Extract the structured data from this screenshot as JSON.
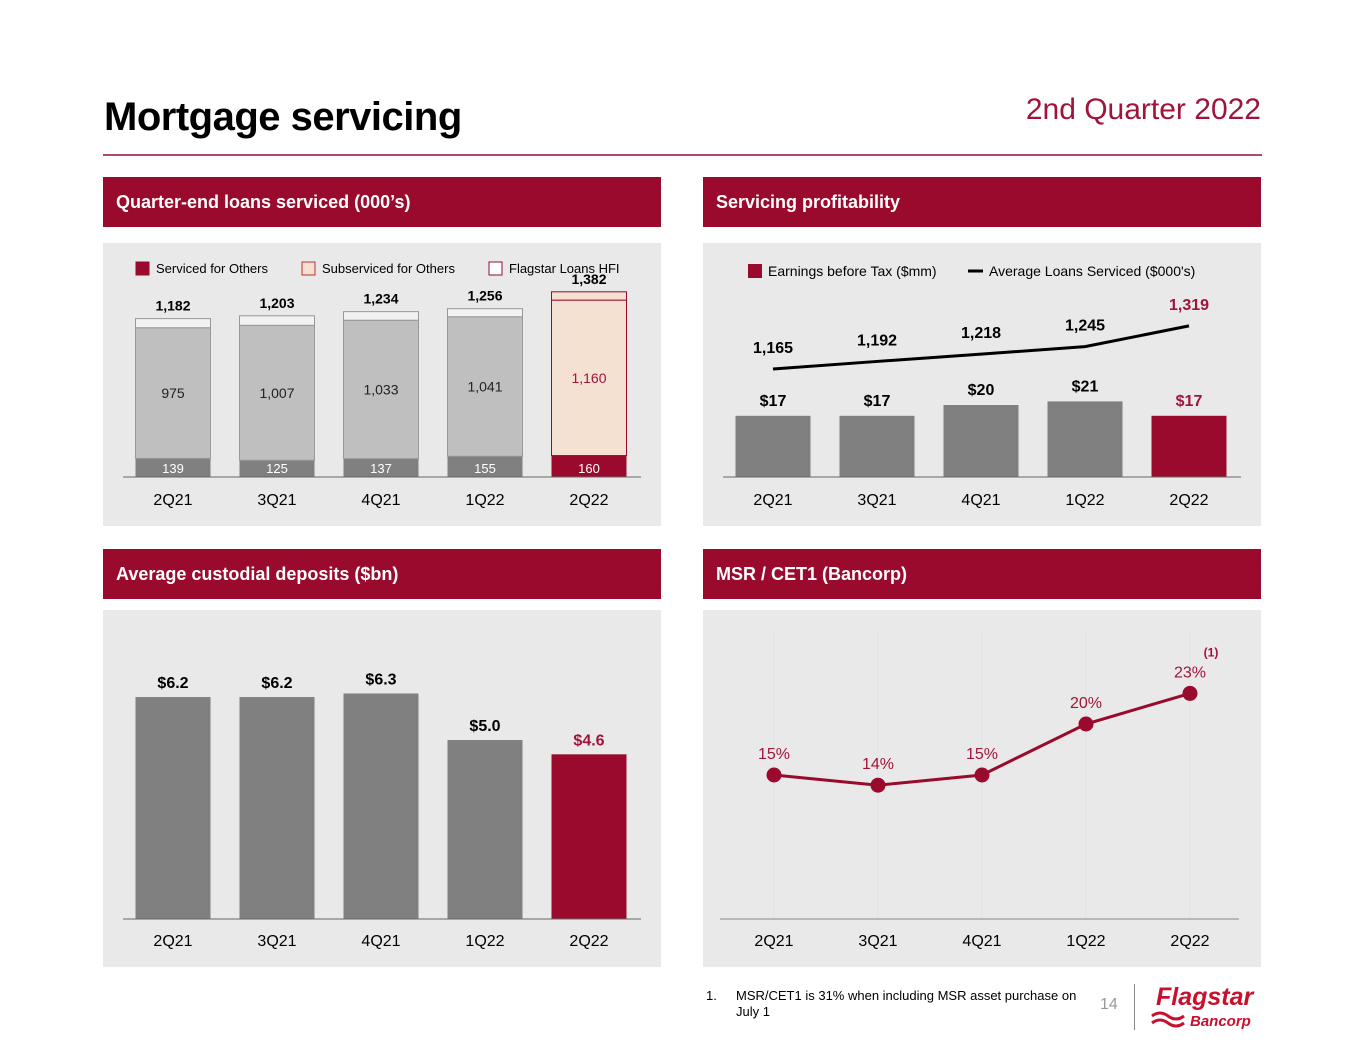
{
  "header": {
    "title": "Mortgage servicing",
    "period": "2nd Quarter 2022"
  },
  "colors": {
    "brand": "#990a2c",
    "highlight_text": "#a0133a",
    "bar_gray": "#808080",
    "bar_light": "#bfbfbf",
    "peach": "#f5e1d2"
  },
  "chart_data": [
    {
      "id": "loans-serviced",
      "type": "bar",
      "stacked": true,
      "title": "Quarter-end loans serviced (000’s)",
      "categories": [
        "2Q21",
        "3Q21",
        "4Q21",
        "1Q22",
        "2Q22"
      ],
      "legend": [
        "Serviced for Others",
        "Subserviced for Others",
        "Flagstar Loans HFI"
      ],
      "legend_position": "top",
      "series": [
        {
          "name": "Serviced for Others",
          "values": [
            139,
            125,
            137,
            155,
            160
          ]
        },
        {
          "name": "Subserviced for Others",
          "values": [
            975,
            1007,
            1033,
            1041,
            1160
          ]
        },
        {
          "name": "Flagstar Loans HFI",
          "values": [
            68,
            71,
            64,
            60,
            62
          ]
        }
      ],
      "segment_labels": {
        "bottom": [
          "139",
          "125",
          "137",
          "155",
          "160"
        ],
        "middle": [
          "975",
          "1,007",
          "1,033",
          "1,041",
          "1,160"
        ]
      },
      "totals": [
        1182,
        1203,
        1234,
        1256,
        1382
      ],
      "total_labels": [
        "1,182",
        "1,203",
        "1,234",
        "1,256",
        "1,382"
      ],
      "highlight_index": 4,
      "ylim": [
        0,
        1400
      ],
      "grid": false
    },
    {
      "id": "servicing-profitability",
      "type": "bar",
      "title": "Servicing profitability",
      "categories": [
        "2Q21",
        "3Q21",
        "4Q21",
        "1Q22",
        "2Q22"
      ],
      "legend": [
        "Earnings before Tax ($mm)",
        "Average Loans Serviced ($000's)"
      ],
      "legend_position": "top",
      "series": [
        {
          "name": "Earnings before Tax ($mm)",
          "kind": "bar",
          "values": [
            17,
            17,
            20,
            21,
            17
          ],
          "labels": [
            "$17",
            "$17",
            "$20",
            "$21",
            "$17"
          ]
        },
        {
          "name": "Average Loans Serviced ($000's)",
          "kind": "line",
          "values": [
            1165,
            1192,
            1218,
            1245,
            1319
          ],
          "labels": [
            "1,165",
            "1,192",
            "1,218",
            "1,245",
            "1,319"
          ]
        }
      ],
      "highlight_index": 4,
      "grid": false
    },
    {
      "id": "custodial-deposits",
      "type": "bar",
      "title": "Average custodial deposits ($bn)",
      "categories": [
        "2Q21",
        "3Q21",
        "4Q21",
        "1Q22",
        "2Q22"
      ],
      "values": [
        6.2,
        6.2,
        6.3,
        5.0,
        4.6
      ],
      "labels": [
        "$6.2",
        "$6.2",
        "$6.3",
        "$5.0",
        "$4.6"
      ],
      "highlight_index": 4,
      "ylim": [
        0,
        7
      ],
      "grid": false
    },
    {
      "id": "msr-cet1",
      "type": "line",
      "title": "MSR / CET1 (Bancorp)",
      "categories": [
        "2Q21",
        "3Q21",
        "4Q21",
        "1Q22",
        "2Q22"
      ],
      "values": [
        15,
        14,
        15,
        20,
        23
      ],
      "labels": [
        "15%",
        "14%",
        "15%",
        "20%",
        "23%"
      ],
      "annotation": {
        "index": 4,
        "text": "(1)"
      },
      "ylabel": "%",
      "grid": true
    }
  ],
  "footnote": {
    "number": "1.",
    "text": "MSR/CET1 is 31% when including MSR asset purchase on July 1"
  },
  "footer": {
    "page_number": "14",
    "logo_name": "Flagstar",
    "logo_sub": "Bancorp"
  }
}
